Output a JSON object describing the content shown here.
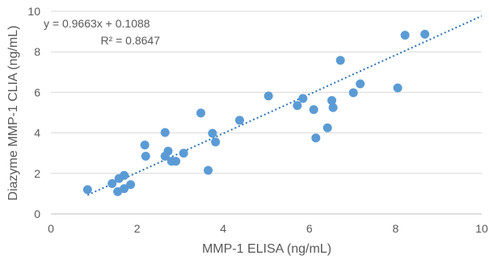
{
  "chart_data": {
    "type": "scatter",
    "title": "",
    "xlabel": "MMP-1 ELISA (ng/mL)",
    "ylabel": "Diazyme MMP-1 CLIA (ng/mL)",
    "xlim": [
      0,
      10
    ],
    "ylim": [
      0,
      10
    ],
    "x_ticks": [
      "0",
      "2",
      "4",
      "6",
      "8",
      "10"
    ],
    "y_ticks": [
      "0",
      "2",
      "4",
      "6",
      "8",
      "10"
    ],
    "grid": "horizontal",
    "legend": "none",
    "marker_color": "#5b9bd5",
    "trendline": {
      "slope": 0.9663,
      "intercept": 0.1088,
      "x_range": [
        0.85,
        10
      ],
      "style": "dotted",
      "color": "#2e75b6",
      "equation_label": "y = 0.9663x + 0.1088",
      "r2_label": "R² = 0.8647"
    },
    "points": [
      {
        "x": 0.85,
        "y": 1.2
      },
      {
        "x": 1.42,
        "y": 1.5
      },
      {
        "x": 1.55,
        "y": 1.1
      },
      {
        "x": 1.58,
        "y": 1.75
      },
      {
        "x": 1.7,
        "y": 1.25
      },
      {
        "x": 1.7,
        "y": 1.9
      },
      {
        "x": 1.85,
        "y": 1.45
      },
      {
        "x": 2.18,
        "y": 3.4
      },
      {
        "x": 2.2,
        "y": 2.85
      },
      {
        "x": 2.65,
        "y": 2.85
      },
      {
        "x": 2.65,
        "y": 4.02
      },
      {
        "x": 2.72,
        "y": 3.1
      },
      {
        "x": 2.8,
        "y": 2.6
      },
      {
        "x": 2.9,
        "y": 2.6
      },
      {
        "x": 3.08,
        "y": 3.0
      },
      {
        "x": 3.48,
        "y": 4.98
      },
      {
        "x": 3.65,
        "y": 2.15
      },
      {
        "x": 3.75,
        "y": 3.98
      },
      {
        "x": 3.82,
        "y": 3.55
      },
      {
        "x": 4.38,
        "y": 4.62
      },
      {
        "x": 5.05,
        "y": 5.82
      },
      {
        "x": 5.72,
        "y": 5.35
      },
      {
        "x": 5.85,
        "y": 5.7
      },
      {
        "x": 6.1,
        "y": 5.15
      },
      {
        "x": 6.15,
        "y": 3.75
      },
      {
        "x": 6.42,
        "y": 4.25
      },
      {
        "x": 6.52,
        "y": 5.6
      },
      {
        "x": 6.55,
        "y": 5.25
      },
      {
        "x": 6.72,
        "y": 7.58
      },
      {
        "x": 7.02,
        "y": 5.98
      },
      {
        "x": 7.18,
        "y": 6.42
      },
      {
        "x": 8.05,
        "y": 6.22
      },
      {
        "x": 8.22,
        "y": 8.82
      },
      {
        "x": 8.68,
        "y": 8.87
      }
    ]
  }
}
